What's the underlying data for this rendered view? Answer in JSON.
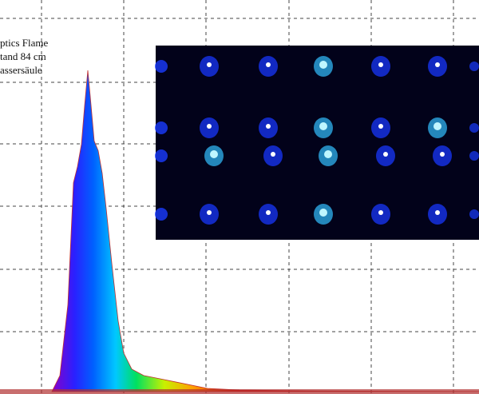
{
  "chart_data": {
    "type": "area",
    "annotations": [
      "ptics Flame",
      "tand 84 cm",
      "assersäule"
    ],
    "x": [
      65,
      75,
      85,
      92,
      97,
      102,
      106,
      110,
      113,
      118,
      123,
      128,
      133,
      140,
      148,
      155,
      165,
      180,
      200,
      220,
      260,
      300,
      400,
      600
    ],
    "values": [
      0,
      5,
      27,
      65,
      70,
      77,
      89,
      100,
      92,
      78,
      75,
      68,
      57,
      40,
      22,
      12,
      7,
      5,
      4,
      3,
      1,
      0.5,
      0.2,
      0
    ],
    "xlim": [
      0,
      600
    ],
    "ylim": [
      0,
      100
    ],
    "grid": true
  }
}
